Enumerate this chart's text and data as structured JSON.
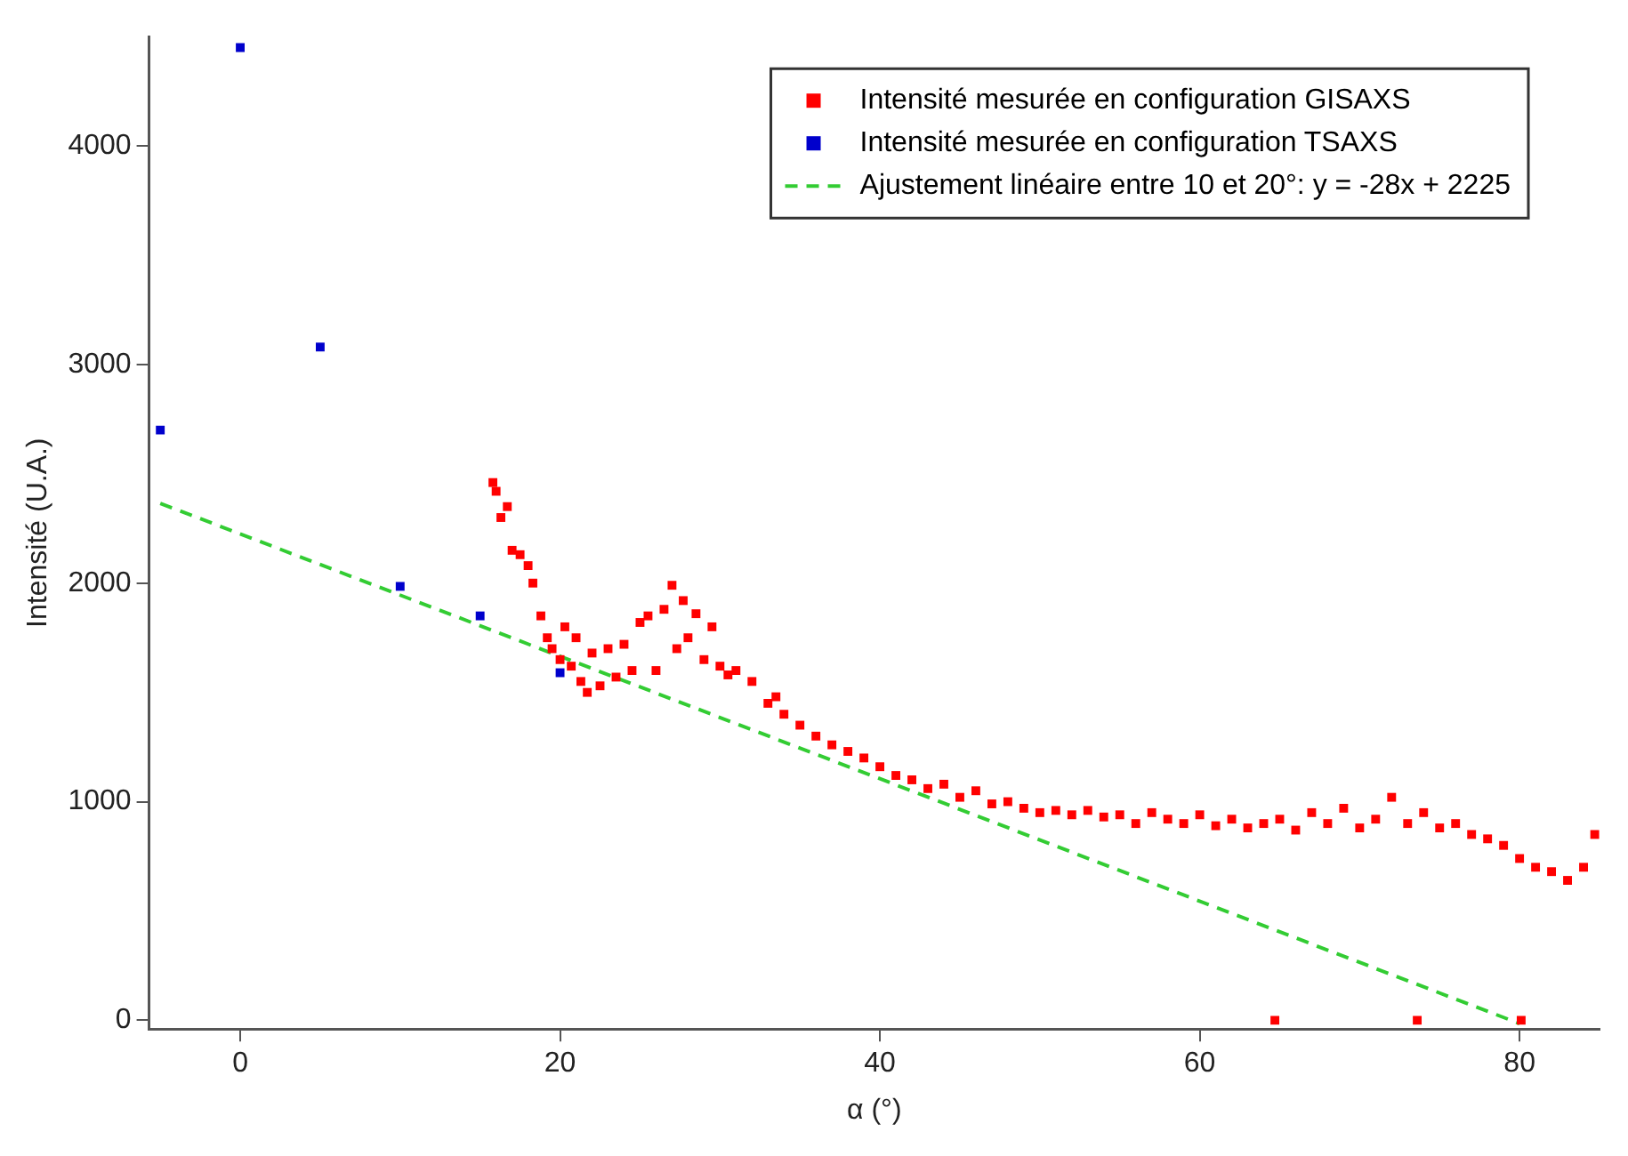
{
  "chart_data": {
    "type": "scatter",
    "xlabel": "α (°)",
    "ylabel": "Intensité (U.A.)",
    "xlim": [
      -5.7,
      85
    ],
    "ylim": [
      -40,
      4500
    ],
    "xticks": [
      0,
      20,
      40,
      60,
      80
    ],
    "yticks": [
      0,
      1000,
      2000,
      3000,
      4000
    ],
    "grid": false,
    "legend": "top right",
    "marker": "square",
    "series": [
      {
        "name": "Intensité mesurée en configuration GISAXS",
        "color": "#ff0000",
        "x": [
          15.8,
          16,
          16.3,
          16.7,
          17,
          17.5,
          18,
          18.3,
          18.8,
          19.2,
          19.5,
          20,
          20.3,
          20.7,
          21,
          21.3,
          21.7,
          22,
          22.5,
          23,
          23.5,
          24,
          24.5,
          25,
          25.5,
          26,
          26.5,
          27,
          27.3,
          27.7,
          28,
          28.5,
          29,
          29.5,
          30,
          30.5,
          31,
          32,
          33,
          33.5,
          34,
          35,
          36,
          37,
          38,
          39,
          40,
          41,
          42,
          43,
          44,
          45,
          46,
          47,
          48,
          49,
          50,
          51,
          52,
          53,
          54,
          55,
          56,
          57,
          58,
          59,
          60,
          61,
          62,
          63,
          64,
          64.7,
          65,
          66,
          67,
          68,
          69,
          70,
          71,
          72,
          73,
          73.6,
          74,
          75,
          76,
          77,
          78,
          79,
          80,
          80.1,
          81,
          82,
          83,
          84,
          84.7
        ],
        "values": [
          2460,
          2420,
          2300,
          2350,
          2150,
          2130,
          2080,
          2000,
          1850,
          1750,
          1700,
          1650,
          1800,
          1620,
          1750,
          1550,
          1500,
          1680,
          1530,
          1700,
          1570,
          1720,
          1600,
          1820,
          1850,
          1600,
          1880,
          1990,
          1700,
          1920,
          1750,
          1860,
          1650,
          1800,
          1620,
          1580,
          1600,
          1550,
          1450,
          1480,
          1400,
          1350,
          1300,
          1260,
          1230,
          1200,
          1160,
          1120,
          1100,
          1060,
          1080,
          1020,
          1050,
          990,
          1000,
          970,
          950,
          960,
          940,
          960,
          930,
          940,
          900,
          950,
          920,
          900,
          940,
          890,
          920,
          880,
          900,
          0,
          920,
          870,
          950,
          900,
          970,
          880,
          920,
          1020,
          900,
          0,
          950,
          880,
          900,
          850,
          830,
          800,
          740,
          0,
          700,
          680,
          640,
          700,
          850
        ]
      },
      {
        "name": "Intensité mesurée en configuration TSAXS",
        "color": "#0000cc",
        "x": [
          -5,
          0,
          5,
          10,
          15,
          20
        ],
        "values": [
          2700,
          4450,
          3080,
          1985,
          1850,
          1590
        ]
      },
      {
        "name": "Ajustement linéaire entre 10 et 20°: y = -28x + 2225",
        "type": "line",
        "line_style": "dashed",
        "marker": "none",
        "color": "#33cc33",
        "x": [
          -5,
          80
        ],
        "values": [
          2365,
          -15
        ]
      }
    ]
  }
}
